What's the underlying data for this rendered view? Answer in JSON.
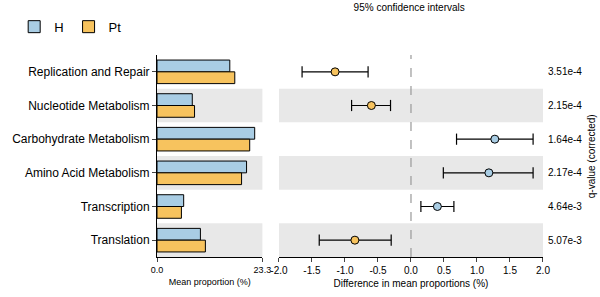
{
  "chart_data": [
    {
      "type": "bar",
      "orientation": "horizontal",
      "categories": [
        "Replication and Repair",
        "Nucleotide Metabolism",
        "Carbohydrate Metabolism",
        "Amino Acid Metabolism",
        "Transcription",
        "Translation"
      ],
      "series": [
        {
          "name": "H",
          "color": "#a9cde4",
          "values": [
            16.1,
            7.8,
            21.6,
            19.8,
            5.9,
            9.6
          ]
        },
        {
          "name": "Pt",
          "color": "#f7c35e",
          "values": [
            17.2,
            8.3,
            20.5,
            18.7,
            5.4,
            10.7
          ]
        }
      ],
      "xlabel": "Mean proportion (%)",
      "xlim": [
        0,
        23.3
      ],
      "xticks": [
        {
          "value": 0,
          "label": "0.0"
        },
        23.3
      ],
      "legend": "top left",
      "grid": false
    },
    {
      "type": "scatter",
      "title": "95% confidence intervals",
      "categories": [
        "Replication and Repair",
        "Nucleotide Metabolism",
        "Carbohydrate Metabolism",
        "Amino Acid Metabolism",
        "Transcription",
        "Translation"
      ],
      "values": [
        -1.15,
        -0.6,
        1.27,
        1.18,
        0.4,
        -0.85
      ],
      "ci_low": [
        -1.65,
        -0.9,
        0.69,
        0.49,
        0.15,
        -1.39
      ],
      "ci_high": [
        -0.65,
        -0.31,
        1.85,
        1.85,
        0.65,
        -0.3
      ],
      "colors": [
        "#f7c35e",
        "#f7c35e",
        "#a9cde4",
        "#a9cde4",
        "#a9cde4",
        "#f7c35e"
      ],
      "xlabel": "Difference in mean proportions (%)",
      "xlim": [
        -2,
        2
      ],
      "xticks": [
        {
          "value": -2,
          "label": "-2.0"
        },
        {
          "value": -1.5,
          "label": "-1.5"
        },
        {
          "value": -1,
          "label": "-1.0"
        },
        {
          "value": -0.5,
          "label": "-0.5"
        },
        {
          "value": 0,
          "label": "0.0"
        },
        {
          "value": 0.5,
          "label": "0.5"
        },
        {
          "value": 1,
          "label": "1.0"
        },
        {
          "value": 1.5,
          "label": "1.5"
        },
        {
          "value": 2,
          "label": "2.0"
        }
      ],
      "q_value_title": "q-value (corrected)",
      "q_values": [
        0.000351,
        0.000215,
        0.000164,
        0.000217,
        0.00464,
        0.00507
      ],
      "q_value_labels": [
        "3.51e-4",
        "2.15e-4",
        "1.64e-4",
        "2.17e-4",
        "4.64e-3",
        "5.07e-3"
      ],
      "grid": false
    }
  ]
}
